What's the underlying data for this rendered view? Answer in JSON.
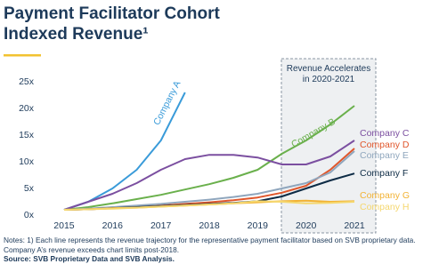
{
  "chart_data": {
    "type": "line",
    "title": "Payment Facilitator Cohort Indexed Revenue¹",
    "annotation": "Revenue Accelerates in 2020-2021",
    "notes": "Notes: 1) Each line represents the revenue trajectory for the representative payment facilitator based on SVB proprietary data. Company A’s revenue exceeds chart limits post-2018.",
    "source": "Source: SVB Proprietary Data and SVB Analysis.",
    "x": [
      2015,
      2015.5,
      2016,
      2016.5,
      2017,
      2017.5,
      2018,
      2018.5,
      2019,
      2019.5,
      2020,
      2020.5,
      2021
    ],
    "xlim": [
      2014.5,
      2021.2
    ],
    "xticks": [
      2015,
      2016,
      2017,
      2018,
      2019,
      2020,
      2021
    ],
    "ylim": [
      0,
      26
    ],
    "yticks": [
      {
        "value": 0,
        "label": "0x"
      },
      {
        "value": 5,
        "label": "5x"
      },
      {
        "value": 10,
        "label": "10x"
      },
      {
        "value": 15,
        "label": "15x"
      },
      {
        "value": 20,
        "label": "20x"
      },
      {
        "value": 25,
        "label": "25x"
      }
    ],
    "grid": false,
    "series": [
      {
        "name": "Company A",
        "color": "#3a9bd9",
        "values": [
          1,
          2.5,
          5,
          8.5,
          14,
          23,
          null,
          null,
          null,
          null,
          null,
          null,
          null
        ]
      },
      {
        "name": "Company B",
        "color": "#6ab04c",
        "values": [
          1,
          1.5,
          2.2,
          3,
          3.8,
          4.8,
          5.8,
          7,
          8.5,
          11.5,
          14,
          17,
          20.5
        ]
      },
      {
        "name": "Company C",
        "color": "#7b4fa0",
        "values": [
          1,
          2.5,
          4,
          6,
          8.5,
          10.5,
          11.3,
          11.3,
          10.8,
          9.5,
          9.5,
          11,
          14
        ]
      },
      {
        "name": "Company D",
        "color": "#e0562b",
        "values": [
          1,
          1.1,
          1.3,
          1.5,
          1.8,
          2.1,
          2.4,
          2.8,
          3.3,
          4.2,
          5.5,
          8.5,
          12.5
        ]
      },
      {
        "name": "Company E",
        "color": "#8fa6bd",
        "values": [
          1,
          1.2,
          1.5,
          1.8,
          2.1,
          2.5,
          2.9,
          3.4,
          4,
          5,
          6,
          8,
          12
        ]
      },
      {
        "name": "Company F",
        "color": "#0d2b45",
        "values": [
          1,
          1.1,
          1.3,
          1.5,
          1.7,
          1.9,
          2.1,
          2.3,
          2.6,
          3.5,
          5,
          6.5,
          7.8
        ]
      },
      {
        "name": "Company G",
        "color": "#f2b233",
        "values": [
          1,
          1.1,
          1.3,
          1.4,
          1.6,
          1.8,
          2,
          2.2,
          2.4,
          2.6,
          2.7,
          2.5,
          2.6
        ]
      },
      {
        "name": "Company H",
        "color": "#f5d76e",
        "values": [
          1,
          1.1,
          1.2,
          1.4,
          1.6,
          1.8,
          2,
          2.2,
          2.6,
          2.5,
          2.2,
          2.3,
          2.5
        ]
      }
    ]
  }
}
